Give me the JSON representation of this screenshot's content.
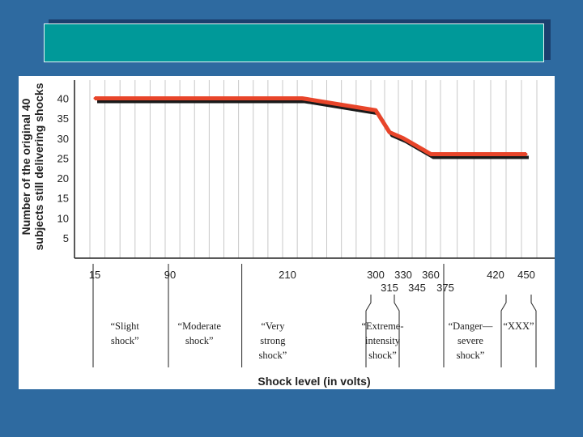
{
  "slide": {
    "title": "",
    "colors": {
      "background": "#2e6aa0",
      "title_box": "#009999",
      "title_shadow": "#1b3f6e",
      "line": "#e8452a",
      "line_shadow": "#1a1a1a"
    }
  },
  "chart_data": {
    "type": "line",
    "title": "",
    "xlabel": "Shock level (in volts)",
    "ylabel": [
      "Number of the original 40",
      "subjects still delivering shocks"
    ],
    "x_scale": "categorical-volts",
    "x_ticks": [
      "15",
      "90",
      "210",
      "300",
      "315",
      "330",
      "345",
      "360",
      "375",
      "420",
      "450"
    ],
    "y_ticks": [
      "5",
      "10",
      "15",
      "20",
      "25",
      "30",
      "35",
      "40"
    ],
    "ylim": [
      0,
      45
    ],
    "grid": "vertical",
    "series": [
      {
        "x": [
          15,
          225,
          300,
          315,
          330,
          345,
          360,
          375,
          450
        ],
        "values": [
          40,
          40,
          37,
          31.5,
          30,
          28,
          26,
          26,
          26
        ]
      }
    ],
    "categories": [
      {
        "text": [
          "“Slight",
          "shock”"
        ],
        "from": 15,
        "to": 75
      },
      {
        "text": [
          "“Moderate",
          "shock”"
        ],
        "from": 90,
        "to": 150
      },
      {
        "text": [
          "“Very",
          "strong",
          "shock”"
        ],
        "from": 165,
        "to": 225
      },
      {
        "text": [
          "“Extreme-",
          "intensity",
          "shock”"
        ],
        "from": 300,
        "to": 315
      },
      {
        "text": [
          "“Danger—",
          "severe",
          "shock”"
        ],
        "from": 375,
        "to": 420
      },
      {
        "text": [
          "“XXX”"
        ],
        "from": 435,
        "to": 450
      }
    ]
  }
}
